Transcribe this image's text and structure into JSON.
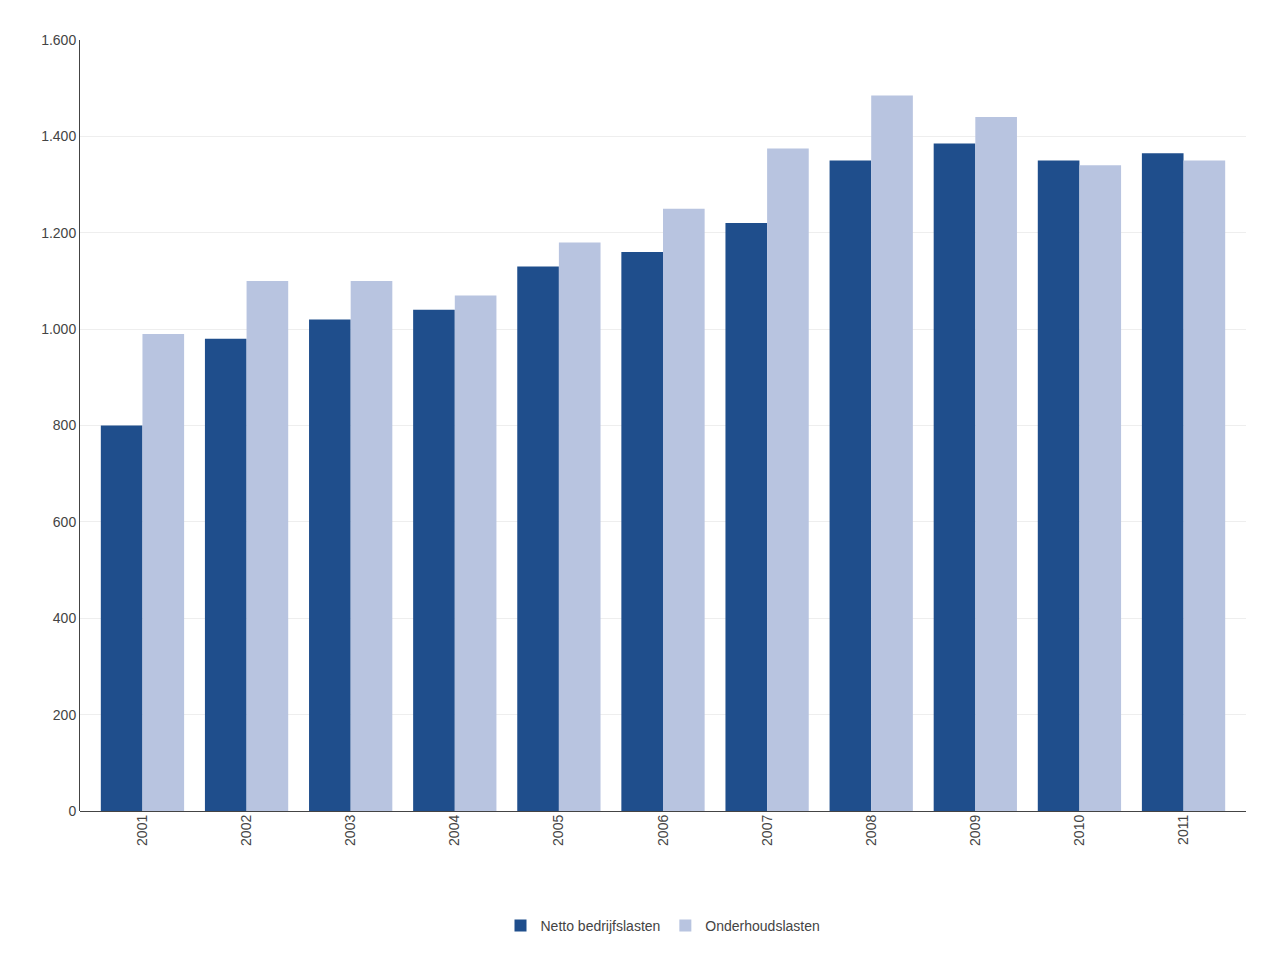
{
  "chart_data": {
    "type": "bar",
    "categories": [
      "2001",
      "2002",
      "2003",
      "2004",
      "2005",
      "2006",
      "2007",
      "2008",
      "2009",
      "2010",
      "2011"
    ],
    "series": [
      {
        "name": "Netto bedrijfslasten",
        "color": "#1F4E8C",
        "values": [
          800,
          980,
          1020,
          1040,
          1130,
          1160,
          1220,
          1350,
          1385,
          1350,
          1365
        ]
      },
      {
        "name": "Onderhoudslasten",
        "color": "#B8C4E0",
        "values": [
          990,
          1100,
          1100,
          1070,
          1180,
          1250,
          1375,
          1485,
          1440,
          1340,
          1350
        ]
      }
    ],
    "ylim": [
      0,
      1600
    ],
    "yticks": [
      0,
      200,
      400,
      600,
      800,
      {
        "value": 1000,
        "label": "1.000"
      },
      {
        "value": 1200,
        "label": "1.200"
      },
      {
        "value": 1400,
        "label": "1.400"
      },
      {
        "value": 1600,
        "label": "1.600"
      }
    ],
    "grid": true,
    "legend": "bottom"
  }
}
